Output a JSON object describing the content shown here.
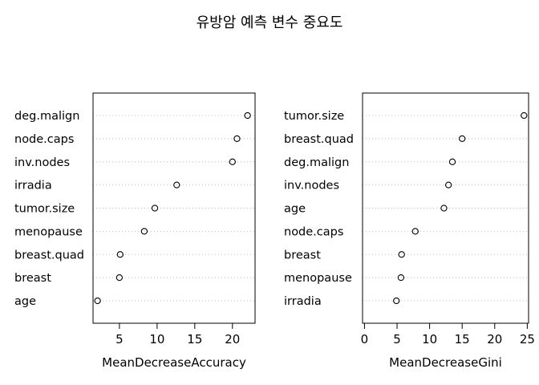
{
  "title": "유방암 예측 변수 중요도",
  "chart_data": [
    {
      "type": "scatter",
      "subtype": "dotchart",
      "xlabel": "MeanDecreaseAccuracy",
      "xlim": [
        1.5,
        23.0
      ],
      "xticks": [
        5,
        10,
        15,
        20
      ],
      "grid": "dotted-horizontal",
      "categories": [
        "deg.malign",
        "node.caps",
        "inv.nodes",
        "irradia",
        "tumor.size",
        "menopause",
        "breast.quad",
        "breast",
        "age"
      ],
      "values": [
        22.0,
        20.6,
        20.0,
        12.6,
        9.7,
        8.3,
        5.1,
        5.0,
        2.1
      ]
    },
    {
      "type": "scatter",
      "subtype": "dotchart",
      "xlabel": "MeanDecreaseGini",
      "xlim": [
        -0.3,
        25.2
      ],
      "xticks": [
        0,
        5,
        10,
        15,
        20,
        25
      ],
      "grid": "dotted-horizontal",
      "categories": [
        "tumor.size",
        "breast.quad",
        "deg.malign",
        "inv.nodes",
        "age",
        "node.caps",
        "breast",
        "menopause",
        "irradia"
      ],
      "values": [
        24.5,
        15.0,
        13.5,
        12.9,
        12.2,
        7.8,
        5.7,
        5.6,
        4.9
      ]
    }
  ]
}
